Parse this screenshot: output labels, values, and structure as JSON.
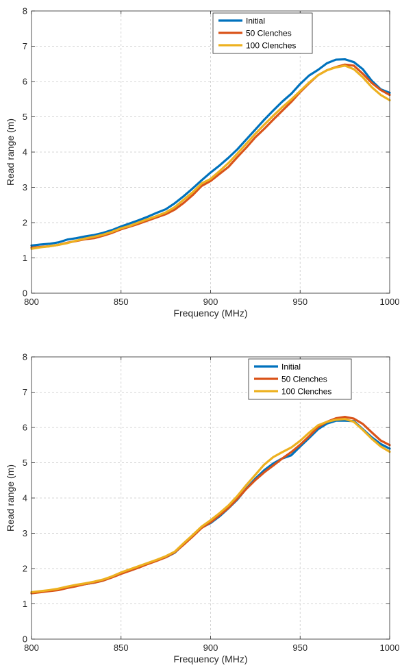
{
  "chart_data": [
    {
      "type": "line",
      "title": "",
      "xlabel": "Frequency (MHz)",
      "ylabel": "Read range (m)",
      "xlim": [
        800,
        1000
      ],
      "ylim": [
        0,
        8
      ],
      "xticks": [
        800,
        850,
        900,
        950,
        1000
      ],
      "yticks": [
        0,
        1,
        2,
        3,
        4,
        5,
        6,
        7,
        8
      ],
      "grid": true,
      "legend_position": "top-center",
      "x": [
        800,
        805,
        810,
        815,
        820,
        825,
        830,
        835,
        840,
        845,
        850,
        855,
        860,
        865,
        870,
        875,
        880,
        885,
        890,
        895,
        900,
        905,
        910,
        915,
        920,
        925,
        930,
        935,
        940,
        945,
        950,
        955,
        960,
        965,
        970,
        975,
        980,
        985,
        990,
        995,
        1000
      ],
      "series": [
        {
          "name": "Initial",
          "color": "#0072BD",
          "values": [
            1.35,
            1.38,
            1.4,
            1.44,
            1.52,
            1.56,
            1.61,
            1.65,
            1.71,
            1.79,
            1.89,
            1.98,
            2.07,
            2.17,
            2.28,
            2.38,
            2.55,
            2.75,
            2.97,
            3.2,
            3.42,
            3.62,
            3.84,
            4.08,
            4.36,
            4.64,
            4.92,
            5.18,
            5.43,
            5.65,
            5.93,
            6.17,
            6.33,
            6.52,
            6.62,
            6.63,
            6.55,
            6.35,
            6.02,
            5.78,
            5.68
          ]
        },
        {
          "name": "50 Clenches",
          "color": "#D95319",
          "values": [
            1.29,
            1.31,
            1.33,
            1.37,
            1.43,
            1.48,
            1.53,
            1.56,
            1.63,
            1.71,
            1.81,
            1.89,
            1.97,
            2.06,
            2.15,
            2.24,
            2.37,
            2.56,
            2.78,
            3.04,
            3.18,
            3.38,
            3.58,
            3.86,
            4.13,
            4.42,
            4.66,
            4.92,
            5.17,
            5.42,
            5.7,
            5.95,
            6.18,
            6.32,
            6.41,
            6.48,
            6.45,
            6.22,
            5.96,
            5.76,
            5.62
          ]
        },
        {
          "name": "100 Clenches",
          "color": "#EDB120",
          "values": [
            1.26,
            1.3,
            1.33,
            1.37,
            1.42,
            1.49,
            1.55,
            1.6,
            1.66,
            1.74,
            1.84,
            1.91,
            2.01,
            2.1,
            2.19,
            2.29,
            2.44,
            2.65,
            2.86,
            3.11,
            3.24,
            3.46,
            3.69,
            3.96,
            4.24,
            4.52,
            4.78,
            5.03,
            5.27,
            5.49,
            5.73,
            5.97,
            6.18,
            6.32,
            6.4,
            6.45,
            6.35,
            6.12,
            5.84,
            5.62,
            5.47
          ]
        }
      ]
    },
    {
      "type": "line",
      "title": "",
      "xlabel": "Frequency (MHz)",
      "ylabel": "Read range (m)",
      "xlim": [
        800,
        1000
      ],
      "ylim": [
        0,
        8
      ],
      "xticks": [
        800,
        850,
        900,
        950,
        1000
      ],
      "yticks": [
        0,
        1,
        2,
        3,
        4,
        5,
        6,
        7,
        8
      ],
      "grid": true,
      "legend_position": "top-right",
      "x": [
        800,
        805,
        810,
        815,
        820,
        825,
        830,
        835,
        840,
        845,
        850,
        855,
        860,
        865,
        870,
        875,
        880,
        885,
        890,
        895,
        900,
        905,
        910,
        915,
        920,
        925,
        930,
        935,
        940,
        945,
        950,
        955,
        960,
        965,
        970,
        975,
        980,
        985,
        990,
        995,
        1000
      ],
      "series": [
        {
          "name": "Initial",
          "color": "#0072BD",
          "values": [
            1.31,
            1.34,
            1.37,
            1.4,
            1.46,
            1.52,
            1.56,
            1.6,
            1.66,
            1.76,
            1.87,
            1.94,
            2.04,
            2.14,
            2.23,
            2.32,
            2.45,
            2.69,
            2.93,
            3.16,
            3.29,
            3.48,
            3.71,
            3.96,
            4.27,
            4.55,
            4.79,
            4.98,
            5.12,
            5.21,
            5.46,
            5.7,
            5.95,
            6.11,
            6.19,
            6.19,
            6.18,
            5.95,
            5.72,
            5.53,
            5.4
          ]
        },
        {
          "name": "50 Clenches",
          "color": "#D95319",
          "values": [
            1.3,
            1.33,
            1.36,
            1.39,
            1.45,
            1.5,
            1.56,
            1.6,
            1.66,
            1.75,
            1.85,
            1.94,
            2.03,
            2.13,
            2.22,
            2.32,
            2.46,
            2.68,
            2.91,
            3.15,
            3.31,
            3.51,
            3.72,
            3.98,
            4.26,
            4.51,
            4.73,
            4.92,
            5.12,
            5.3,
            5.51,
            5.75,
            6.01,
            6.16,
            6.26,
            6.3,
            6.25,
            6.1,
            5.86,
            5.63,
            5.5
          ]
        },
        {
          "name": "100 Clenches",
          "color": "#EDB120",
          "values": [
            1.33,
            1.36,
            1.39,
            1.43,
            1.49,
            1.54,
            1.58,
            1.63,
            1.69,
            1.78,
            1.89,
            1.98,
            2.07,
            2.16,
            2.25,
            2.35,
            2.48,
            2.72,
            2.95,
            3.19,
            3.37,
            3.57,
            3.79,
            4.06,
            4.37,
            4.66,
            4.95,
            5.16,
            5.3,
            5.43,
            5.62,
            5.85,
            6.06,
            6.16,
            6.22,
            6.24,
            6.16,
            5.93,
            5.68,
            5.46,
            5.31
          ]
        }
      ]
    }
  ]
}
